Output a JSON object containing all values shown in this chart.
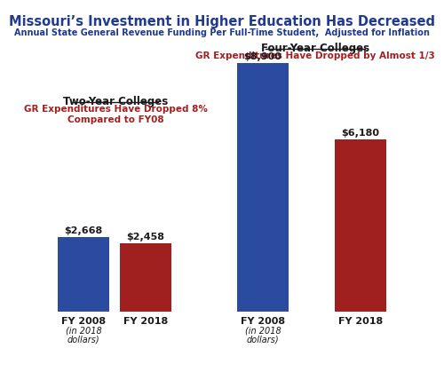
{
  "title": "Missouri’s Investment in Higher Education Has Decreased",
  "subtitle": "Annual State General Revenue Funding Per Full-Time Student,  Adjusted for Inflation",
  "title_color": "#1F3A8F",
  "subtitle_color": "#1F3A8F",
  "blue_color": "#2B4BA0",
  "red_color": "#A02020",
  "two_year_label": "Two-Year Colleges",
  "two_year_sublabel_line1": "GR Expenditures Have Dropped 8%",
  "two_year_sublabel_line2": "Compared to FY08",
  "four_year_label": "Four-Year Colleges",
  "four_year_sublabel": "GR Expenditures Have Dropped by Almost 1/3",
  "two_year_fy2008": 2668,
  "two_year_fy2018": 2458,
  "four_year_fy2008": 8900,
  "four_year_fy2018": 6180,
  "background_color": "#FFFFFF",
  "dark_text": "#1a1a1a"
}
